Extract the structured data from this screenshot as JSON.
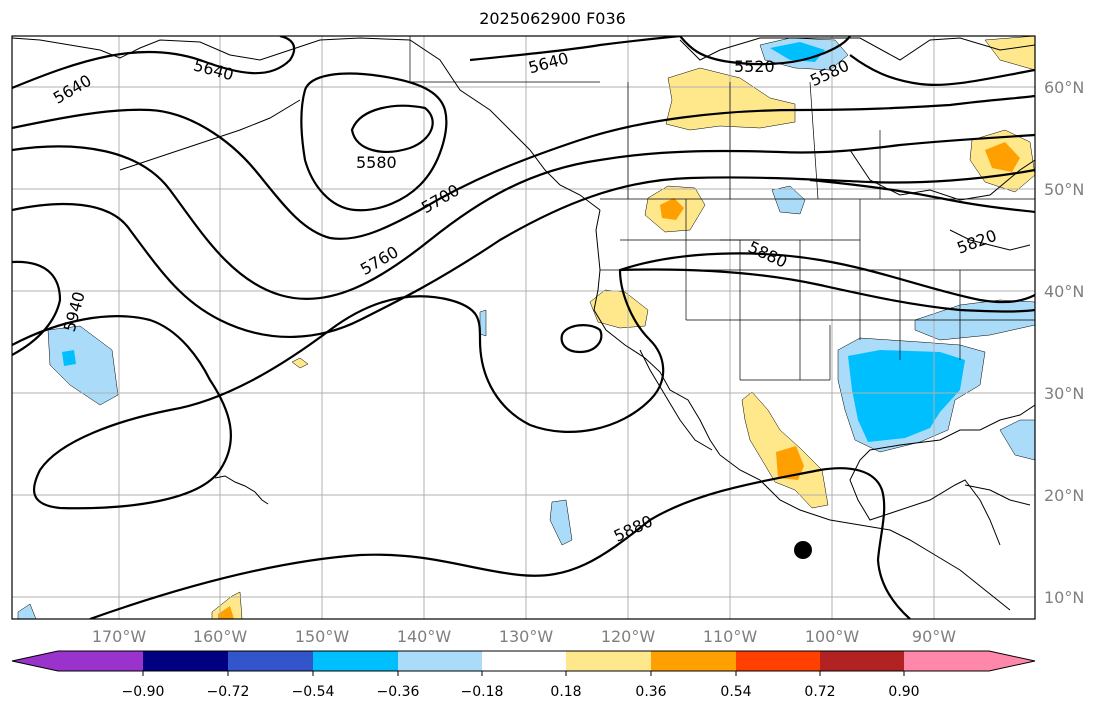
{
  "title": "2025062900 F036",
  "map": {
    "lon_labels": [
      "170°W",
      "160°W",
      "150°W",
      "140°W",
      "130°W",
      "120°W",
      "110°W",
      "100°W",
      "90°W"
    ],
    "lat_labels": [
      "60°N",
      "50°N",
      "40°N",
      "30°N",
      "20°N",
      "10°N"
    ],
    "contour_labels": [
      "5640",
      "5640",
      "5640",
      "5520",
      "5580",
      "5580",
      "5700",
      "5760",
      "5880",
      "5820",
      "5940",
      "5880"
    ],
    "storm_marker": "storm-center-marker"
  },
  "colorbar": {
    "tick_labels": [
      "−0.90",
      "−0.72",
      "−0.54",
      "−0.36",
      "−0.18",
      "0.18",
      "0.36",
      "0.54",
      "0.72",
      "0.90"
    ],
    "colors": [
      "#9933cc",
      "#000080",
      "#3355cc",
      "#00bfff",
      "#aadcfa",
      "#ffffff",
      "#ffe88c",
      "#ffa000",
      "#ff4000",
      "#b22222",
      "#ff88aa"
    ]
  }
}
